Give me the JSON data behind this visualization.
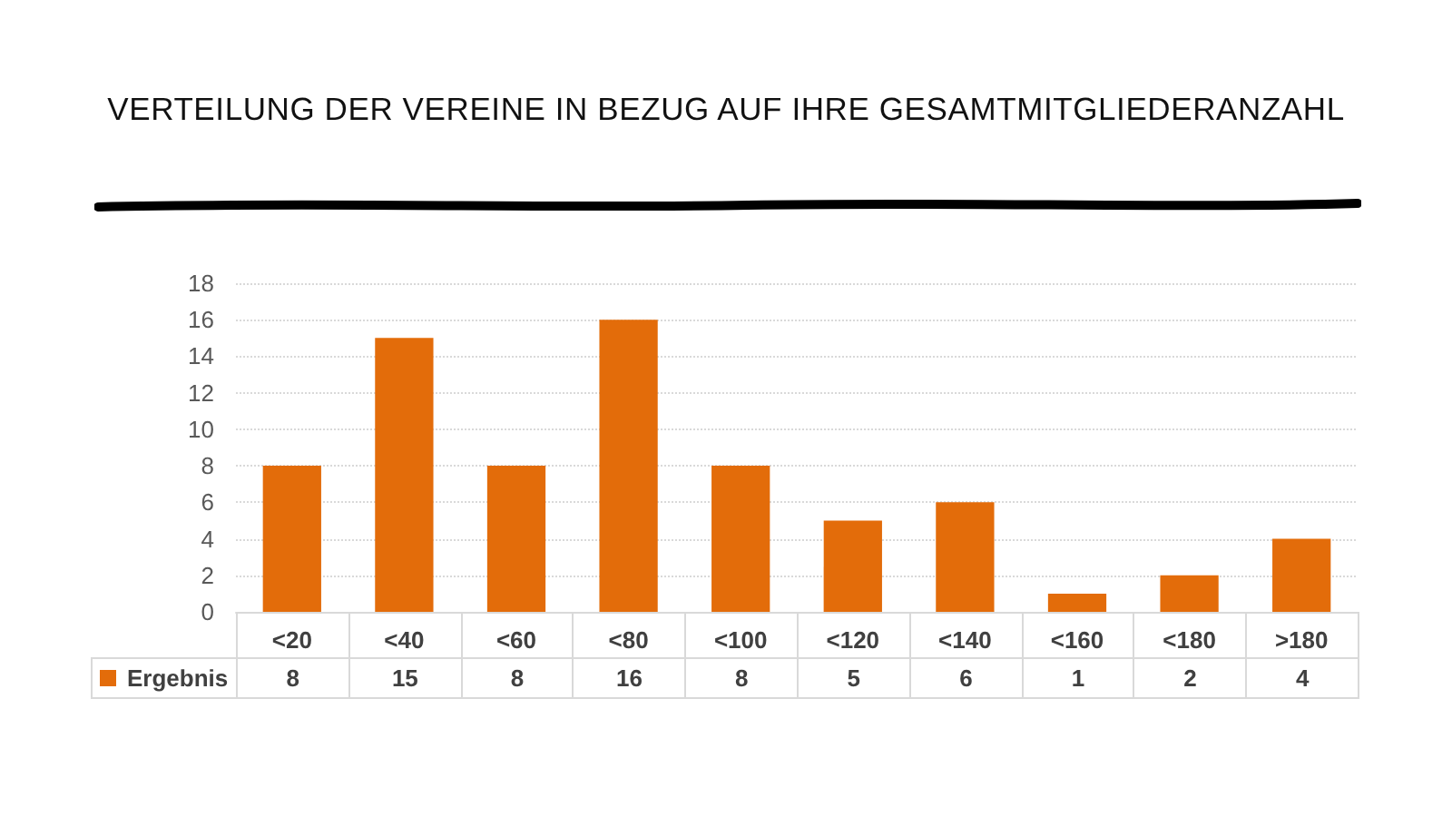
{
  "chart_data": {
    "type": "bar",
    "title": "VERTEILUNG DER VEREINE IN BEZUG AUF IHRE GESAMTMITGLIEDERANZAHL",
    "categories": [
      "<20",
      "<40",
      "<60",
      "<80",
      "<100",
      "<120",
      "<140",
      "<160",
      "<180",
      ">180"
    ],
    "series": [
      {
        "name": "Ergebnis",
        "color": "#e36c0a",
        "values": [
          8,
          15,
          8,
          16,
          8,
          5,
          6,
          1,
          2,
          4
        ]
      }
    ],
    "ylim": [
      0,
      18
    ],
    "yticks": [
      0,
      2,
      4,
      6,
      8,
      10,
      12,
      14,
      16,
      18
    ],
    "grid": "y",
    "legend": "bottom",
    "data_labels": true
  }
}
